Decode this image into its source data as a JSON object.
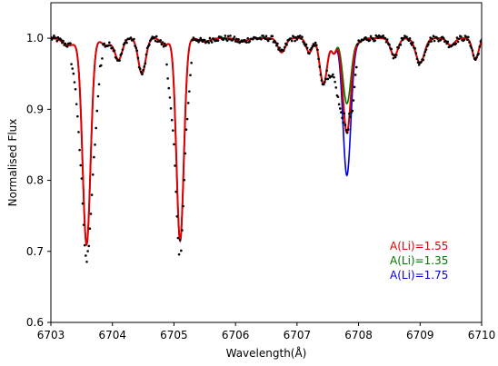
{
  "chart_data": {
    "type": "line",
    "xlabel": "Wavelength(Å)",
    "ylabel": "Normalised Flux",
    "xlim": [
      6703,
      6710
    ],
    "ylim": [
      0.6,
      1.05
    ],
    "xticks": [
      6703,
      6704,
      6705,
      6706,
      6707,
      6708,
      6709,
      6710
    ],
    "yticks": [
      0.6,
      0.7,
      0.8,
      0.9,
      1.0
    ],
    "xtick_labels": [
      "6703",
      "6704",
      "6705",
      "6706",
      "6707",
      "6708",
      "6709",
      "6710"
    ],
    "ytick_labels": [
      "0.6",
      "0.7",
      "0.8",
      "0.9",
      "1.0"
    ],
    "grid": false,
    "legend_position": "lower-right",
    "model": {
      "continuum": 1.0,
      "lines": [
        {
          "center": 6703.3,
          "depth": 0.01,
          "width": 0.1
        },
        {
          "center": 6703.58,
          "depth": 0.29,
          "width": 0.065
        },
        {
          "center": 6703.9,
          "depth": 0.01,
          "width": 0.08
        },
        {
          "center": 6704.1,
          "depth": 0.03,
          "width": 0.06
        },
        {
          "center": 6704.48,
          "depth": 0.05,
          "width": 0.06
        },
        {
          "center": 6704.85,
          "depth": 0.01,
          "width": 0.06
        },
        {
          "center": 6705.1,
          "depth": 0.285,
          "width": 0.06
        },
        {
          "center": 6705.5,
          "depth": 0.005,
          "width": 0.08
        },
        {
          "center": 6706.1,
          "depth": 0.005,
          "width": 0.08
        },
        {
          "center": 6706.75,
          "depth": 0.02,
          "width": 0.06
        },
        {
          "center": 6707.2,
          "depth": 0.02,
          "width": 0.05
        },
        {
          "center": 6707.43,
          "depth": 0.065,
          "width": 0.06
        },
        {
          "center": 6707.6,
          "depth": 0.02,
          "width": 0.04
        },
        {
          "center": 6708.0,
          "depth": 0.005,
          "width": 0.06
        },
        {
          "center": 6708.58,
          "depth": 0.025,
          "width": 0.06
        },
        {
          "center": 6709.0,
          "depth": 0.035,
          "width": 0.07
        },
        {
          "center": 6709.5,
          "depth": 0.01,
          "width": 0.06
        },
        {
          "center": 6709.9,
          "depth": 0.03,
          "width": 0.05
        }
      ]
    },
    "series": [
      {
        "name": "A(Li)=1.55",
        "color": "#dd0000",
        "li_depth": 0.133
      },
      {
        "name": "A(Li)=1.35",
        "color": "#007700",
        "li_depth": 0.092
      },
      {
        "name": "A(Li)=1.75",
        "color": "#0000dd",
        "li_depth": 0.193
      }
    ],
    "li_line": {
      "center": 6707.81,
      "width": 0.065
    },
    "observed": {
      "color": "#000000",
      "noise": 0.004,
      "points": [
        [
          6703.0,
          1.004
        ],
        [
          6703.1,
          1.006
        ],
        [
          6703.2,
          0.998
        ],
        [
          6703.3,
          0.985
        ],
        [
          6703.4,
          0.93
        ],
        [
          6703.5,
          0.8
        ],
        [
          6703.55,
          0.71
        ],
        [
          6703.58,
          0.683
        ],
        [
          6703.62,
          0.71
        ],
        [
          6703.7,
          0.83
        ],
        [
          6703.8,
          0.96
        ],
        [
          6703.9,
          0.99
        ],
        [
          6704.0,
          0.996
        ],
        [
          6704.1,
          0.975
        ],
        [
          6704.2,
          0.99
        ],
        [
          6704.3,
          1.002
        ],
        [
          6704.45,
          0.955
        ],
        [
          6704.5,
          0.94
        ],
        [
          6704.6,
          0.985
        ],
        [
          6704.7,
          0.998
        ],
        [
          6704.85,
          0.996
        ],
        [
          6705.0,
          0.85
        ],
        [
          6705.08,
          0.695
        ],
        [
          6705.12,
          0.7
        ],
        [
          6705.2,
          0.87
        ],
        [
          6705.3,
          0.985
        ],
        [
          6705.5,
          0.998
        ],
        [
          6706.0,
          1.0
        ],
        [
          6706.75,
          0.983
        ],
        [
          6707.0,
          1.0
        ],
        [
          6707.3,
          0.985
        ],
        [
          6707.43,
          0.93
        ],
        [
          6707.55,
          0.95
        ],
        [
          6707.6,
          0.945
        ],
        [
          6707.7,
          0.9
        ],
        [
          6707.81,
          0.865
        ],
        [
          6707.9,
          0.9
        ],
        [
          6708.0,
          0.99
        ],
        [
          6708.3,
          1.0
        ],
        [
          6708.58,
          0.985
        ],
        [
          6709.0,
          0.975
        ],
        [
          6709.5,
          0.995
        ],
        [
          6709.9,
          0.975
        ],
        [
          6710.0,
          0.985
        ]
      ]
    }
  }
}
